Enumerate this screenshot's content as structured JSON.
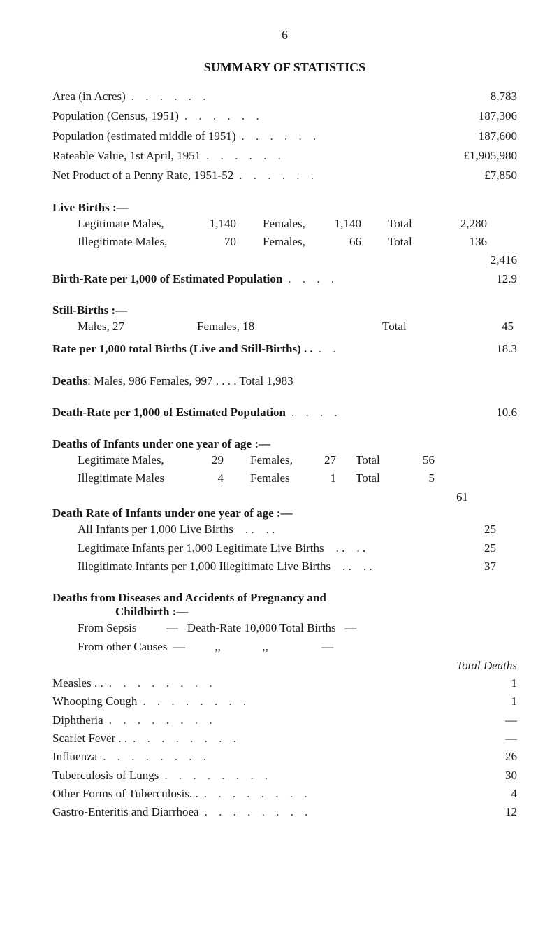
{
  "page_number": "6",
  "title": "SUMMARY OF STATISTICS",
  "top_stats": [
    {
      "label": "Area (in Acres)",
      "value": "8,783"
    },
    {
      "label": "Population (Census, 1951)",
      "value": "187,306"
    },
    {
      "label": "Population (estimated middle of 1951)",
      "value": "187,600"
    },
    {
      "label": "Rateable Value, 1st April, 1951",
      "value": "£1,905,980"
    },
    {
      "label": "Net Product of a Penny Rate, 1951-52",
      "value": "£7,850"
    }
  ],
  "live_births": {
    "heading": "Live Births :—",
    "rows": [
      {
        "c1": "Legitimate Males,",
        "n1": "1,140",
        "c2": "Females,",
        "n2": "1,140",
        "c3": "Total",
        "n3": "2,280"
      },
      {
        "c1": "Illegitimate Males,",
        "n1": "70",
        "c2": "Females,",
        "n2": "66",
        "c3": "Total",
        "n3": "136"
      }
    ],
    "grand_total": "2,416"
  },
  "birth_rate": {
    "label": "Birth-Rate per 1,000 of Estimated Population",
    "value": "12.9"
  },
  "still_births": {
    "heading": "Still-Births :—",
    "row": {
      "c1": "Males, 27",
      "c2": "Females, 18",
      "c3": "Total",
      "n3": "45"
    }
  },
  "still_birth_rate": {
    "label": "Rate per 1,000 total Births (Live and Still-Births) . .",
    "value": "18.3"
  },
  "deaths": {
    "label": "Deaths",
    "detail": ": Males, 986     Females, 997     . .     . .   Total     1,983"
  },
  "death_rate": {
    "label": "Death-Rate per 1,000 of Estimated Population",
    "value": "10.6"
  },
  "infant_deaths": {
    "heading": "Deaths of Infants under one year of age :—",
    "rows": [
      {
        "c1": "Legitimate Males,",
        "n1": "29",
        "c2": "Females,",
        "n2": "27",
        "c3": "Total",
        "n3": "56"
      },
      {
        "c1": "Illegitimate Males",
        "n1": "4",
        "c2": "Females",
        "n2": "1",
        "c3": "Total",
        "n3": "5"
      }
    ],
    "grand_total": "61"
  },
  "infant_death_rate": {
    "heading": "Death Rate of Infants under one year of age :—",
    "rows": [
      {
        "label": "All Infants per 1,000 Live Births",
        "value": "25"
      },
      {
        "label": "Legitimate Infants per 1,000 Legitimate Live Births",
        "value": "25"
      },
      {
        "label": "Illegitimate Infants per 1,000 Illegitimate Live Births",
        "value": "37"
      }
    ]
  },
  "pregnancy": {
    "heading_l1": "Deaths from Diseases and Accidents of Pregnancy and",
    "heading_l2": "Childbirth :—",
    "rows": [
      {
        "label": "From Sepsis          —   Death-Rate 10,000 Total Births   —"
      },
      {
        "label": "From other Causes  —          ,,              ,,                  —"
      }
    ]
  },
  "diseases": {
    "total_label": "Total Deaths",
    "rows": [
      {
        "label": "Measles . .",
        "value": "1"
      },
      {
        "label": "Whooping Cough",
        "value": "1"
      },
      {
        "label": "Diphtheria",
        "value": "—"
      },
      {
        "label": "Scarlet Fever . .",
        "value": "—"
      },
      {
        "label": "Influenza",
        "value": "26"
      },
      {
        "label": "Tuberculosis of Lungs",
        "value": "30"
      },
      {
        "label": "Other Forms of Tuberculosis. .",
        "value": "4"
      },
      {
        "label": "Gastro-Enteritis and Diarrhoea",
        "value": "12"
      }
    ]
  },
  "style": {
    "background_color": "#ffffff",
    "text_color": "#1a1a1a",
    "font_family": "serif",
    "body_fontsize": 17,
    "title_fontsize": 18
  }
}
